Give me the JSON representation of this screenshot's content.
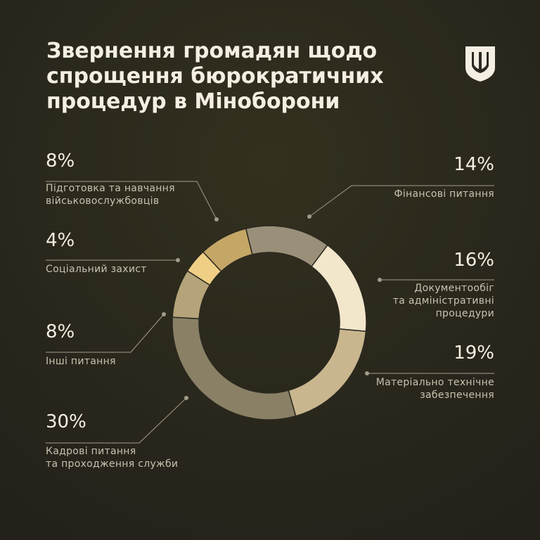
{
  "chart_data": {
    "type": "donut",
    "title": [
      "Звернення громадян щодо",
      "спрощення бюрократичних",
      "процедур в Міноборони"
    ],
    "categories": [
      [
        "Фінансові питання"
      ],
      [
        "Документообіг",
        "та адміністративні",
        "процедури"
      ],
      [
        "Матеріально технічне",
        "забезпечення"
      ],
      [
        "Кадрові питання",
        "та проходження служби"
      ],
      [
        "Інші питання"
      ],
      [
        "Соціальний захист"
      ],
      [
        "Підготовка та навчання",
        "військовослужбовців"
      ]
    ],
    "values": [
      14,
      16,
      19,
      30,
      8,
      4,
      8
    ],
    "value_labels": [
      "14%",
      "16%",
      "19%",
      "30%",
      "8%",
      "4%",
      "8%"
    ],
    "colors": [
      "#9a9079",
      "#f2e6cb",
      "#c9b68e",
      "#8a8065",
      "#b5a479",
      "#efcf86",
      "#c4a766"
    ]
  }
}
